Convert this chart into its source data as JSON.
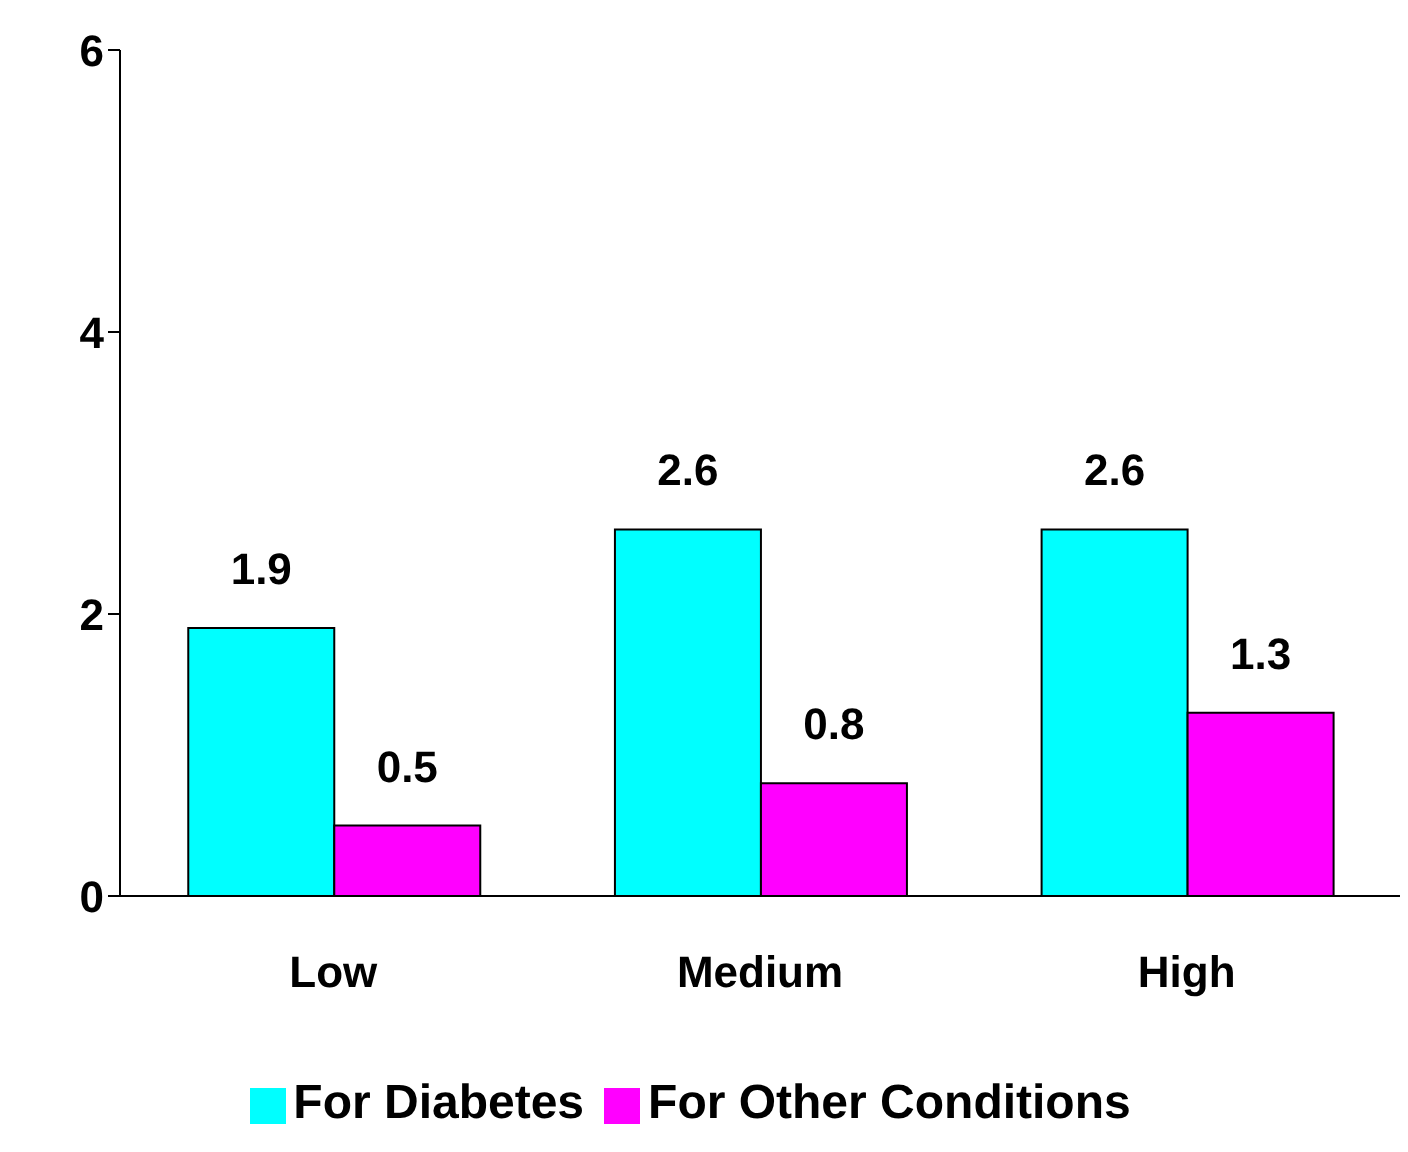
{
  "chart_data": {
    "type": "bar",
    "categories": [
      "Low",
      "Medium",
      "High"
    ],
    "series": [
      {
        "name": "For Diabetes",
        "color": "#00ffff",
        "values": [
          1.9,
          2.6,
          2.6
        ]
      },
      {
        "name": "For Other Conditions",
        "color": "#ff00ff",
        "values": [
          0.5,
          0.8,
          1.3
        ]
      }
    ],
    "ylim": [
      0,
      6
    ],
    "yticks": [
      0,
      2,
      4,
      6
    ],
    "data_labels": true,
    "grid": false,
    "legend": "bottom"
  }
}
